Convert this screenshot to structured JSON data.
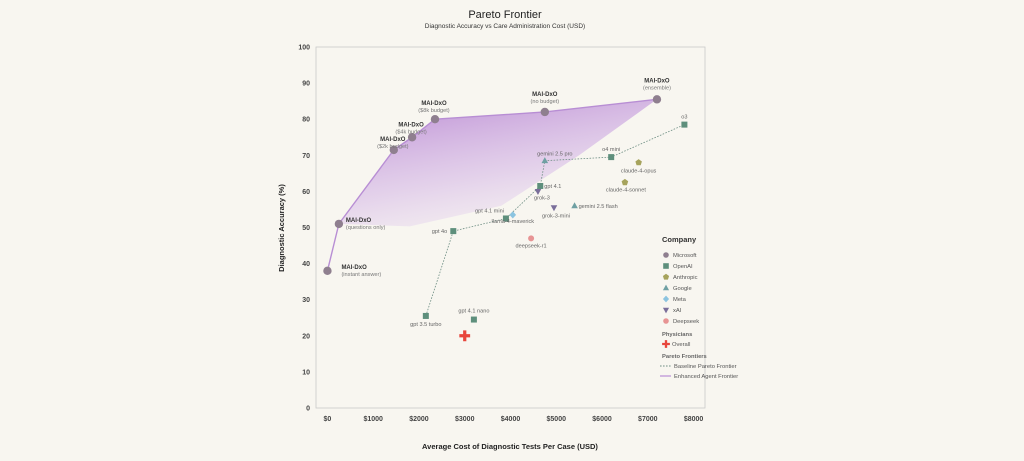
{
  "chart_data": {
    "type": "scatter",
    "title": "Pareto Frontier",
    "subtitle": "Diagnostic Accuracy vs Care Administration Cost (USD)",
    "xlabel": "Average Cost of Diagnostic Tests Per Case (USD)",
    "ylabel": "Diagnostic Accuracy (%)",
    "xlim": [
      -250,
      8250
    ],
    "ylim": [
      0,
      100
    ],
    "x_ticks": [
      {
        "value": 0,
        "label": "$0"
      },
      {
        "value": 1000,
        "label": "$1000"
      },
      {
        "value": 2000,
        "label": "$2000"
      },
      {
        "value": 3000,
        "label": "$3000"
      },
      {
        "value": 4000,
        "label": "$4000"
      },
      {
        "value": 5000,
        "label": "$5000"
      },
      {
        "value": 6000,
        "label": "$6000"
      },
      {
        "value": 7000,
        "label": "$7000"
      },
      {
        "value": 8000,
        "label": "$8000"
      }
    ],
    "y_ticks": [
      0,
      10,
      20,
      30,
      40,
      50,
      60,
      70,
      80,
      90,
      100
    ],
    "grid": false,
    "colors": {
      "Microsoft": "#8f7f8f",
      "OpenAI": "#5e8f7c",
      "Anthropic": "#a6a35c",
      "Google": "#6fa0a3",
      "Meta": "#8cc4e0",
      "xAI": "#7a6e9a",
      "Deepseek": "#e79494",
      "Physicians": "#e8463c",
      "frontier": "#b88ed4",
      "baseline": "#6f8f84"
    },
    "points": [
      {
        "company": "Microsoft",
        "x": 0,
        "y": 38,
        "label": "MAI-DxO",
        "sublabel": "(instant answer)"
      },
      {
        "company": "Microsoft",
        "x": 250,
        "y": 51,
        "label": "MAI-DxO",
        "sublabel": "(questions only)"
      },
      {
        "company": "Microsoft",
        "x": 1450,
        "y": 71.5,
        "label": "MAI-DxO",
        "sublabel": "($2k budget)"
      },
      {
        "company": "Microsoft",
        "x": 1850,
        "y": 75,
        "label": "MAI-DxO",
        "sublabel": "($4k budget)"
      },
      {
        "company": "Microsoft",
        "x": 2350,
        "y": 80,
        "label": "MAI-DxO",
        "sublabel": "($8k budget)"
      },
      {
        "company": "Microsoft",
        "x": 4750,
        "y": 82,
        "label": "MAI-DxO",
        "sublabel": "(no budget)"
      },
      {
        "company": "Microsoft",
        "x": 7200,
        "y": 85.5,
        "label": "MAI-DxO",
        "sublabel": "(ensemble)"
      },
      {
        "company": "OpenAI",
        "x": 2150,
        "y": 25.5,
        "label": "gpt 3.5 turbo"
      },
      {
        "company": "OpenAI",
        "x": 3200,
        "y": 24.5,
        "label": "gpt 4.1 nano"
      },
      {
        "company": "OpenAI",
        "x": 2750,
        "y": 49,
        "label": "gpt 4o"
      },
      {
        "company": "OpenAI",
        "x": 3900,
        "y": 52.5,
        "label": "gpt 4.1 mini"
      },
      {
        "company": "OpenAI",
        "x": 4650,
        "y": 61.5,
        "label": "gpt 4.1"
      },
      {
        "company": "OpenAI",
        "x": 6200,
        "y": 69.5,
        "label": "o4 mini"
      },
      {
        "company": "OpenAI",
        "x": 7800,
        "y": 78.5,
        "label": "o3"
      },
      {
        "company": "Anthropic",
        "x": 6500,
        "y": 62.5,
        "label": "claude-4-sonnet"
      },
      {
        "company": "Anthropic",
        "x": 6800,
        "y": 68,
        "label": "claude-4-opus"
      },
      {
        "company": "Google",
        "x": 4750,
        "y": 68.5,
        "label": "gemini 2.5 pro"
      },
      {
        "company": "Google",
        "x": 5400,
        "y": 56,
        "label": "gemini 2.5 flash"
      },
      {
        "company": "Meta",
        "x": 4050,
        "y": 53.5,
        "label": "llama-4-maverick"
      },
      {
        "company": "xAI",
        "x": 4600,
        "y": 60,
        "label": "grok-3"
      },
      {
        "company": "xAI",
        "x": 4950,
        "y": 55.5,
        "label": "grok-3-mini"
      },
      {
        "company": "Deepseek",
        "x": 4450,
        "y": 47,
        "label": "deepseek-r1"
      },
      {
        "company": "Physicians",
        "x": 3000,
        "y": 20,
        "label": ""
      }
    ],
    "enhanced_frontier": [
      [
        0,
        38
      ],
      [
        250,
        51
      ],
      [
        1450,
        71.5
      ],
      [
        1850,
        75
      ],
      [
        2350,
        80
      ],
      [
        4750,
        82
      ],
      [
        7200,
        85.5
      ]
    ],
    "baseline_frontier": [
      [
        2150,
        25.5
      ],
      [
        2750,
        49
      ],
      [
        3900,
        52.5
      ],
      [
        4650,
        61.5
      ],
      [
        4750,
        68.5
      ],
      [
        6200,
        69.5
      ],
      [
        7800,
        78.5
      ]
    ],
    "legend": {
      "title": "Company",
      "items": [
        {
          "name": "Microsoft",
          "shape": "circle"
        },
        {
          "name": "OpenAI",
          "shape": "square"
        },
        {
          "name": "Anthropic",
          "shape": "pentagon"
        },
        {
          "name": "Google",
          "shape": "triangle"
        },
        {
          "name": "Meta",
          "shape": "diamond"
        },
        {
          "name": "xAI",
          "shape": "triangle-down"
        },
        {
          "name": "Deepseek",
          "shape": "circle"
        }
      ],
      "physicians_title": "Physicians",
      "physicians_item": "Overall",
      "frontiers_title": "Pareto Frontiers",
      "frontier_items": [
        "Baseline Pareto Frontier",
        "Enhanced Agent Frontier"
      ],
      "placement": "right"
    }
  }
}
